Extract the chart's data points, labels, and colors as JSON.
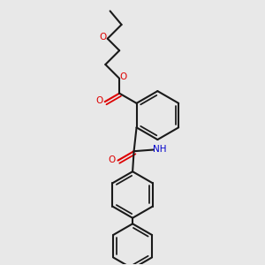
{
  "bg_color": "#e8e8e8",
  "bond_color": "#1a1a1a",
  "oxygen_color": "#dd0000",
  "nitrogen_color": "#0000cc",
  "line_width": 1.5,
  "dbo": 0.012,
  "figsize": [
    3.0,
    3.0
  ],
  "dpi": 100,
  "xlim": [
    0.0,
    1.0
  ],
  "ylim": [
    0.0,
    1.0
  ]
}
